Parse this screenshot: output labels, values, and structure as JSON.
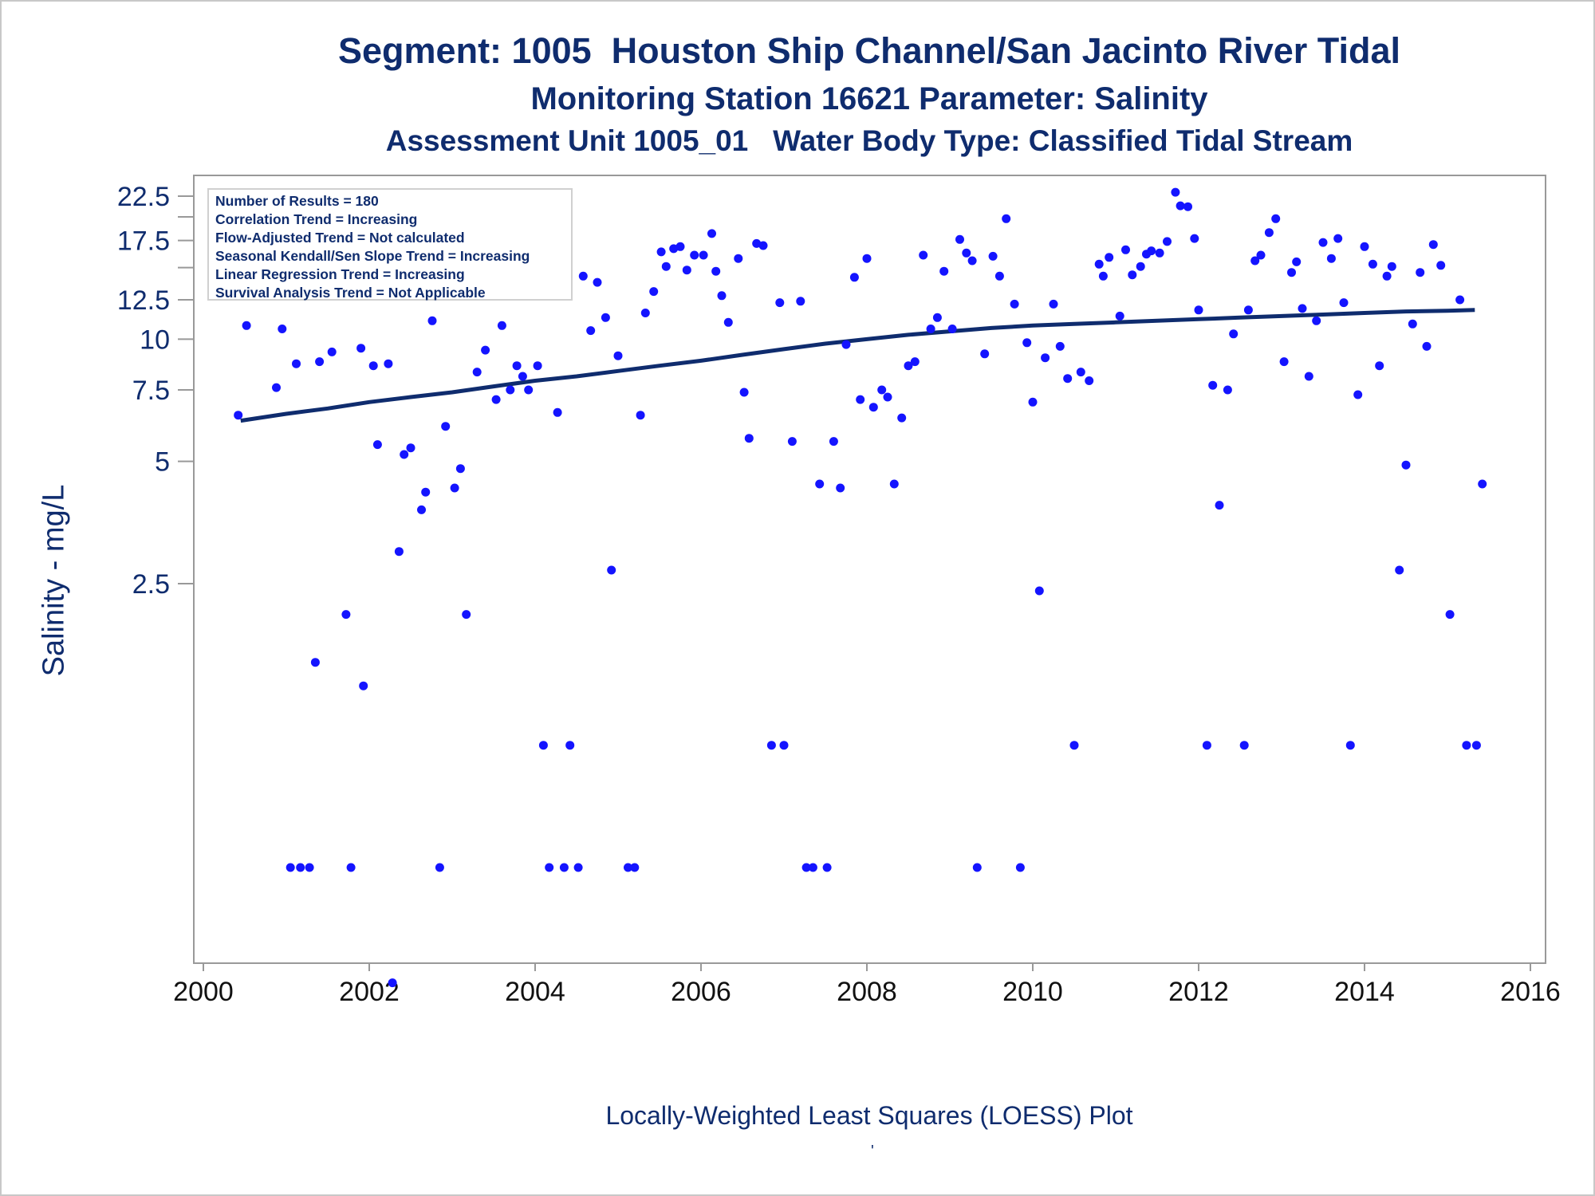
{
  "title": "Segment: 1005  Houston Ship Channel/San Jacinto River Tidal",
  "subtitle": "Monitoring Station 16621 Parameter: Salinity",
  "subtitle2": "Assessment Unit 1005_01   Water Body Type: Classified Tidal Stream",
  "footer": "Locally-Weighted Least Squares (LOESS) Plot",
  "footer_mark": "'",
  "stats": [
    "Number of Results = 180",
    "Correlation Trend = Increasing",
    "Flow-Adjusted Trend = Not calculated",
    "Seasonal Kendall/Sen Slope Trend = Increasing",
    "Linear Regression Trend = Increasing",
    "Survival Analysis Trend = Not Applicable"
  ],
  "colors": {
    "points": "#1414ff",
    "loess": "#0f2c6e",
    "text": "#0f2c6e",
    "axis": "#999999"
  },
  "chart_data": {
    "type": "scatter",
    "title": "Segment: 1005  Houston Ship Channel/San Jacinto River Tidal",
    "xlabel": "",
    "ylabel": "Salinity - mg/L",
    "xlim": [
      2000,
      2016
    ],
    "ylim": [
      0.26,
      24
    ],
    "y_scale": "log",
    "grid": false,
    "legend": "top-left",
    "x_ticks": [
      "2000",
      "2002",
      "2004",
      "2006",
      "2008",
      "2010",
      "2012",
      "2014",
      "2016"
    ],
    "y_ticks": [
      {
        "value": 22.5,
        "label": "22.5"
      },
      {
        "value": 20,
        "label": ""
      },
      {
        "value": 17.5,
        "label": "17.5"
      },
      {
        "value": 15,
        "label": ""
      },
      {
        "value": 12.5,
        "label": "12.5"
      },
      {
        "value": 10,
        "label": "10"
      },
      {
        "value": 7.5,
        "label": "7.5"
      },
      {
        "value": 5,
        "label": "5"
      },
      {
        "value": 2.5,
        "label": "2.5"
      }
    ],
    "series": [
      {
        "name": "",
        "kind": "points",
        "points": [
          [
            2000.42,
            6.5
          ],
          [
            2000.52,
            10.8
          ],
          [
            2000.63,
            16.1
          ],
          [
            2000.72,
            17.3
          ],
          [
            2000.77,
            19.2
          ],
          [
            2000.88,
            7.6
          ],
          [
            2000.95,
            10.6
          ],
          [
            2001.05,
            0.5
          ],
          [
            2001.12,
            8.7
          ],
          [
            2001.17,
            0.5
          ],
          [
            2001.28,
            0.5
          ],
          [
            2001.35,
            1.6
          ],
          [
            2001.4,
            8.8
          ],
          [
            2001.55,
            9.3
          ],
          [
            2001.65,
            13.3
          ],
          [
            2001.72,
            2.1
          ],
          [
            2001.78,
            0.5
          ],
          [
            2001.9,
            9.5
          ],
          [
            2001.93,
            1.4
          ],
          [
            2002.05,
            8.6
          ],
          [
            2002.1,
            5.5
          ],
          [
            2002.23,
            8.7
          ],
          [
            2002.28,
            0.26
          ],
          [
            2002.36,
            3.0
          ],
          [
            2002.42,
            5.2
          ],
          [
            2002.5,
            5.4
          ],
          [
            2002.63,
            3.8
          ],
          [
            2002.68,
            4.2
          ],
          [
            2002.76,
            11.1
          ],
          [
            2002.85,
            0.5
          ],
          [
            2002.92,
            6.1
          ],
          [
            2003.03,
            4.3
          ],
          [
            2003.1,
            4.8
          ],
          [
            2003.17,
            2.1
          ],
          [
            2003.3,
            8.3
          ],
          [
            2003.4,
            9.4
          ],
          [
            2003.45,
            13.6
          ],
          [
            2003.53,
            7.1
          ],
          [
            2003.6,
            10.8
          ],
          [
            2003.7,
            7.5
          ],
          [
            2003.78,
            8.6
          ],
          [
            2003.85,
            8.1
          ],
          [
            2003.92,
            7.5
          ],
          [
            2004.03,
            8.6
          ],
          [
            2004.1,
            1.0
          ],
          [
            2004.17,
            0.5
          ],
          [
            2004.27,
            6.6
          ],
          [
            2004.35,
            0.5
          ],
          [
            2004.42,
            1.0
          ],
          [
            2004.52,
            0.5
          ],
          [
            2004.58,
            14.3
          ],
          [
            2004.67,
            10.5
          ],
          [
            2004.75,
            13.8
          ],
          [
            2004.85,
            11.3
          ],
          [
            2004.92,
            2.7
          ],
          [
            2005.0,
            9.1
          ],
          [
            2005.12,
            0.5
          ],
          [
            2005.2,
            0.5
          ],
          [
            2005.27,
            6.5
          ],
          [
            2005.33,
            11.6
          ],
          [
            2005.43,
            13.1
          ],
          [
            2005.52,
            16.4
          ],
          [
            2005.58,
            15.1
          ],
          [
            2005.67,
            16.7
          ],
          [
            2005.75,
            16.9
          ],
          [
            2005.83,
            14.8
          ],
          [
            2005.92,
            16.1
          ],
          [
            2006.03,
            16.1
          ],
          [
            2006.13,
            18.2
          ],
          [
            2006.18,
            14.7
          ],
          [
            2006.25,
            12.8
          ],
          [
            2006.33,
            11.0
          ],
          [
            2006.45,
            15.8
          ],
          [
            2006.52,
            7.4
          ],
          [
            2006.58,
            5.7
          ],
          [
            2006.67,
            17.2
          ],
          [
            2006.75,
            17.0
          ],
          [
            2006.85,
            1.0
          ],
          [
            2006.95,
            12.3
          ],
          [
            2007.0,
            1.0
          ],
          [
            2007.1,
            5.6
          ],
          [
            2007.2,
            12.4
          ],
          [
            2007.27,
            0.5
          ],
          [
            2007.35,
            0.5
          ],
          [
            2007.43,
            4.4
          ],
          [
            2007.52,
            0.5
          ],
          [
            2007.6,
            5.6
          ],
          [
            2007.68,
            4.3
          ],
          [
            2007.75,
            9.7
          ],
          [
            2007.85,
            14.2
          ],
          [
            2007.92,
            7.1
          ],
          [
            2008.0,
            15.8
          ],
          [
            2008.08,
            6.8
          ],
          [
            2008.18,
            7.5
          ],
          [
            2008.25,
            7.2
          ],
          [
            2008.33,
            4.4
          ],
          [
            2008.42,
            6.4
          ],
          [
            2008.5,
            8.6
          ],
          [
            2008.58,
            8.8
          ],
          [
            2008.68,
            16.1
          ],
          [
            2008.77,
            10.6
          ],
          [
            2008.85,
            11.3
          ],
          [
            2008.93,
            14.7
          ],
          [
            2009.03,
            10.6
          ],
          [
            2009.12,
            17.6
          ],
          [
            2009.2,
            16.3
          ],
          [
            2009.27,
            15.6
          ],
          [
            2009.33,
            0.5
          ],
          [
            2009.42,
            9.2
          ],
          [
            2009.52,
            16.0
          ],
          [
            2009.6,
            14.3
          ],
          [
            2009.68,
            19.8
          ],
          [
            2009.78,
            12.2
          ],
          [
            2009.85,
            0.5
          ],
          [
            2009.93,
            9.8
          ],
          [
            2010.0,
            7.0
          ],
          [
            2010.08,
            2.4
          ],
          [
            2010.15,
            9.0
          ],
          [
            2010.25,
            12.2
          ],
          [
            2010.33,
            9.6
          ],
          [
            2010.42,
            8.0
          ],
          [
            2010.5,
            1.0
          ],
          [
            2010.58,
            8.3
          ],
          [
            2010.68,
            7.9
          ],
          [
            2010.8,
            15.3
          ],
          [
            2010.85,
            14.3
          ],
          [
            2010.92,
            15.9
          ],
          [
            2011.05,
            11.4
          ],
          [
            2011.12,
            16.6
          ],
          [
            2011.2,
            14.4
          ],
          [
            2011.3,
            15.1
          ],
          [
            2011.37,
            16.2
          ],
          [
            2011.43,
            16.5
          ],
          [
            2011.53,
            16.3
          ],
          [
            2011.62,
            17.4
          ],
          [
            2011.72,
            23.0
          ],
          [
            2011.78,
            21.3
          ],
          [
            2011.87,
            21.2
          ],
          [
            2011.95,
            17.7
          ],
          [
            2012.0,
            11.8
          ],
          [
            2012.1,
            1.0
          ],
          [
            2012.17,
            7.7
          ],
          [
            2012.25,
            3.9
          ],
          [
            2012.35,
            7.5
          ],
          [
            2012.42,
            10.3
          ],
          [
            2012.55,
            1.0
          ],
          [
            2012.6,
            11.8
          ],
          [
            2012.68,
            15.6
          ],
          [
            2012.75,
            16.1
          ],
          [
            2012.85,
            18.3
          ],
          [
            2012.93,
            19.8
          ],
          [
            2013.03,
            8.8
          ],
          [
            2013.12,
            14.6
          ],
          [
            2013.18,
            15.5
          ],
          [
            2013.25,
            11.9
          ],
          [
            2013.33,
            8.1
          ],
          [
            2013.42,
            11.1
          ],
          [
            2013.5,
            17.3
          ],
          [
            2013.6,
            15.8
          ],
          [
            2013.68,
            17.7
          ],
          [
            2013.75,
            12.3
          ],
          [
            2013.83,
            1.0
          ],
          [
            2013.92,
            7.3
          ],
          [
            2014.0,
            16.9
          ],
          [
            2014.1,
            15.3
          ],
          [
            2014.18,
            8.6
          ],
          [
            2014.27,
            14.3
          ],
          [
            2014.33,
            15.1
          ],
          [
            2014.42,
            2.7
          ],
          [
            2014.5,
            4.9
          ],
          [
            2014.58,
            10.9
          ],
          [
            2014.67,
            14.6
          ],
          [
            2014.75,
            9.6
          ],
          [
            2014.83,
            17.1
          ],
          [
            2014.92,
            15.2
          ],
          [
            2015.03,
            2.1
          ],
          [
            2015.15,
            12.5
          ],
          [
            2015.23,
            1.0
          ],
          [
            2015.35,
            1.0
          ],
          [
            2015.42,
            4.4
          ]
        ]
      },
      {
        "name": "",
        "kind": "loess",
        "points": [
          [
            2000.45,
            6.3
          ],
          [
            2001.0,
            6.55
          ],
          [
            2001.5,
            6.75
          ],
          [
            2002.0,
            7.0
          ],
          [
            2002.5,
            7.2
          ],
          [
            2003.0,
            7.4
          ],
          [
            2003.5,
            7.65
          ],
          [
            2004.0,
            7.9
          ],
          [
            2004.5,
            8.1
          ],
          [
            2005.0,
            8.35
          ],
          [
            2005.5,
            8.6
          ],
          [
            2006.0,
            8.85
          ],
          [
            2006.5,
            9.15
          ],
          [
            2007.0,
            9.45
          ],
          [
            2007.5,
            9.75
          ],
          [
            2008.0,
            10.0
          ],
          [
            2008.5,
            10.25
          ],
          [
            2009.0,
            10.45
          ],
          [
            2009.5,
            10.65
          ],
          [
            2010.0,
            10.8
          ],
          [
            2010.5,
            10.9
          ],
          [
            2011.0,
            11.0
          ],
          [
            2011.5,
            11.1
          ],
          [
            2012.0,
            11.2
          ],
          [
            2012.5,
            11.3
          ],
          [
            2013.0,
            11.4
          ],
          [
            2013.5,
            11.5
          ],
          [
            2014.0,
            11.6
          ],
          [
            2014.5,
            11.7
          ],
          [
            2015.0,
            11.75
          ],
          [
            2015.33,
            11.8
          ]
        ]
      }
    ]
  }
}
